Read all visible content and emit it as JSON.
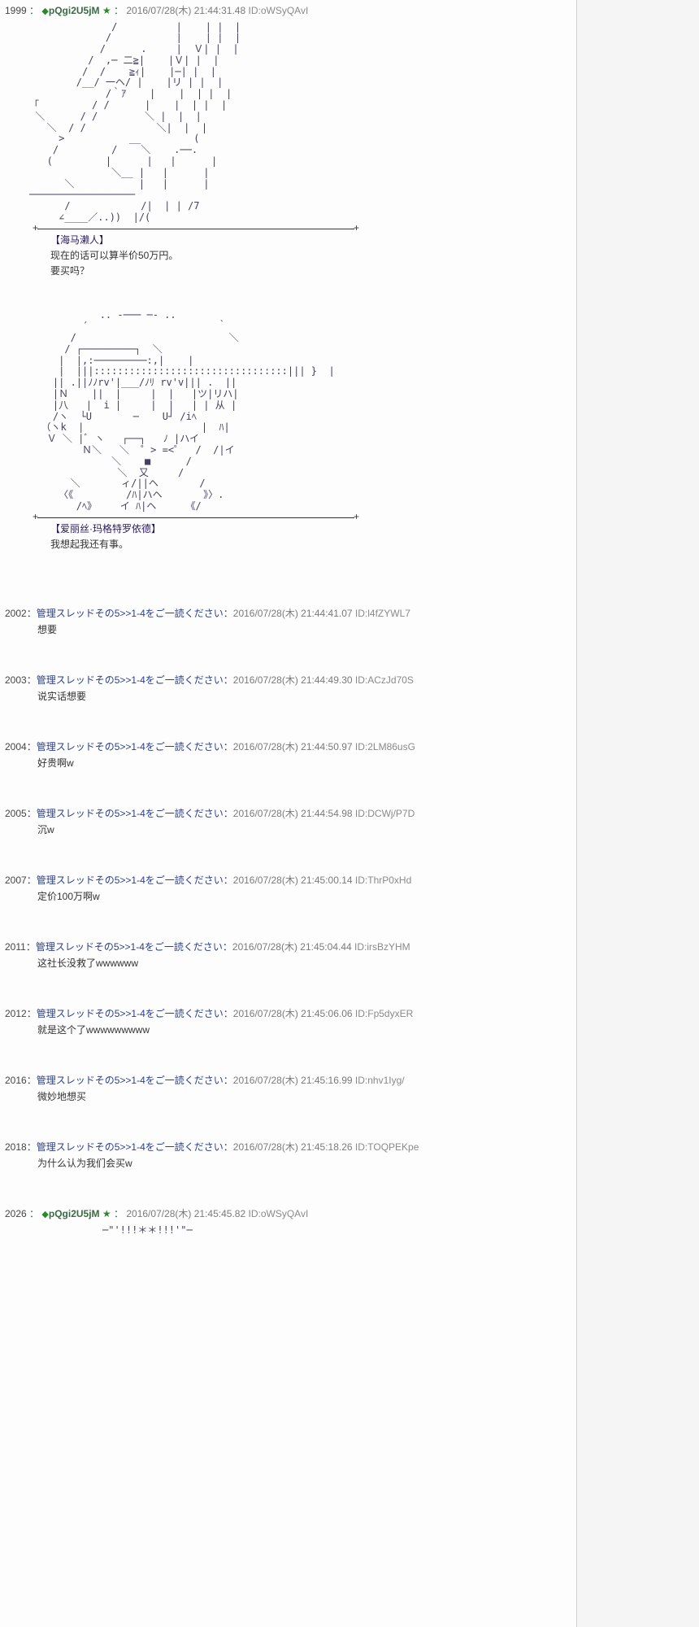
{
  "colors": {
    "bg": "#f5f5f5",
    "panel": "#fdfdfd",
    "border": "#cfcfcf",
    "trip": "#3a6a45",
    "star": "#2a8a2a",
    "name": "#2a3f8a",
    "timestamp": "#7a7a7a",
    "id": "#8a8a8a",
    "aa": "#464060",
    "text": "#333"
  },
  "op": {
    "num": "1999",
    "trip": "pQgi2U5jM",
    "timestamp": "2016/07/28(木) 21:44:31.48",
    "id": "ID:oWSyQAvI",
    "aa1": "              /          |    | |  |\n             /           |    | |  |\n            /      .     |  Ｖ| |  |\n          /  ,─ 二≧|    |Ｖ| |  |\n         /  /    ≧ｨ|    |─| |  |\n        /__/ 一ヘ/ |    |リ | |  |\n             /｀ｱ    |    |  | |  |\n「         / /      |    |  | |  |\n ＼      / /        ＼ |  |  |\n   ＼  / /            ＼|  |  |\n     >           __         (\n    /         /    ＼    .──.\n   (         |      |   |      |\n              ＼__ |   |      |\n      ＼           |   |      |\n──────────────────\n      /            /|  | | /7\n     ∠____／..))  |/(",
    "cap1_speaker": "【海马濑人】",
    "cap1_line1": "现在的话可以算半价50万円。",
    "cap1_line2": "要买吗？",
    "aa2": "            .. -─── ─- ..\n         ´                      ｀\n       /                          ＼\n      / ┌─────────┐  ＼\n     |  |,:─────────:,|    |\n     |  |||:::::::::::::::::::::::::::::::::||| }  |\n    || .||ﾉﾉrv'|___/ﾉﾘ rv'v||| .  ||\n    |Ｎ    ||  |     |  |   |ツ|リハ|\n    |八   |  i |     |  |   | | 从 |\n    /ヽ  └U       ─    U┘ /iﾍ\n  （ヽk  |                    |  ﾊ|\n   Ｖ ＼ |ﾞ ヽ   ┌──┐   ﾉ |ハイ\n         Ｎ＼   ＼  ゜> =<゜  /  /|イ\n              ＼    ■      /\n               ＼  又     /\n       ＼       ィ/||ヘ       /\n     〈《         /ﾊ|ハヘ       》〉.\n        /ﾍ》    イ ﾊ|ヘ     《/",
    "cap2_speaker": "【爱丽丝·玛格特罗依德】",
    "cap2_line1": "我想起我还有事。"
  },
  "replies": [
    {
      "num": "2002",
      "name": "管理スレッドその5>>1-4をご一読ください",
      "ts": "2016/07/28(木) 21:44:41.07",
      "id": "ID:l4fZYWL7",
      "body": "想要"
    },
    {
      "num": "2003",
      "name": "管理スレッドその5>>1-4をご一読ください",
      "ts": "2016/07/28(木) 21:44:49.30",
      "id": "ID:ACzJd70S",
      "body": "说实话想要"
    },
    {
      "num": "2004",
      "name": "管理スレッドその5>>1-4をご一読ください",
      "ts": "2016/07/28(木) 21:44:50.97",
      "id": "ID:2LM86usG",
      "body": "好贵啊w"
    },
    {
      "num": "2005",
      "name": "管理スレッドその5>>1-4をご一読ください",
      "ts": "2016/07/28(木) 21:44:54.98",
      "id": "ID:DCWj/P7D",
      "body": "沉w"
    },
    {
      "num": "2007",
      "name": "管理スレッドその5>>1-4をご一読ください",
      "ts": "2016/07/28(木) 21:45:00.14",
      "id": "ID:ThrP0xHd",
      "body": "定价100万啊w"
    },
    {
      "num": "2011",
      "name": "管理スレッドその5>>1-4をご一読ください",
      "ts": "2016/07/28(木) 21:45:04.44",
      "id": "ID:irsBzYHM",
      "body": "这社长没救了wwwwww"
    },
    {
      "num": "2012",
      "name": "管理スレッドその5>>1-4をご一読ください",
      "ts": "2016/07/28(木) 21:45:06.06",
      "id": "ID:Fp5dyxER",
      "body": "就是这个了wwwwwwwww"
    },
    {
      "num": "2016",
      "name": "管理スレッドその5>>1-4をご一読ください",
      "ts": "2016/07/28(木) 21:45:16.99",
      "id": "ID:nhv1Iyg/",
      "body": "微妙地想买"
    },
    {
      "num": "2018",
      "name": "管理スレッドその5>>1-4をご一読ください",
      "ts": "2016/07/28(木) 21:45:18.26",
      "id": "ID:TOQPEKpe",
      "body": "为什么认为我们会买w"
    }
  ],
  "op2": {
    "num": "2026",
    "trip": "pQgi2U5jM",
    "timestamp": "2016/07/28(木) 21:45:45.82",
    "id": "ID:oWSyQAvI",
    "trail": "─\"'!!!＊＊!!!'\"─"
  },
  "sep": "："
}
